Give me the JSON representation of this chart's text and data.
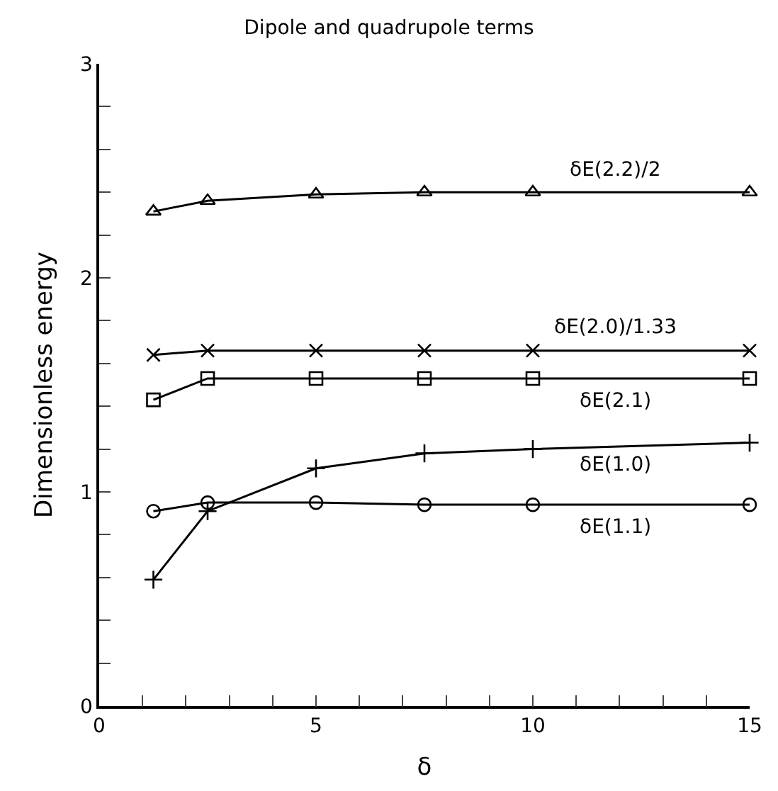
{
  "chart_data": {
    "type": "line",
    "title": "Dipole and quadrupole terms",
    "xlabel": "δ",
    "ylabel": "Dimensionless energy",
    "x": [
      1.25,
      2.5,
      5,
      7.5,
      10,
      15
    ],
    "series": [
      {
        "name": "δE(2.2)/2",
        "color": "#000000",
        "marker": "triangle",
        "values": [
          2.31,
          2.36,
          2.39,
          2.4,
          2.4,
          2.4
        ]
      },
      {
        "name": "δE(2.0)/1.33",
        "color": "#000000",
        "marker": "cross",
        "values": [
          1.64,
          1.66,
          1.66,
          1.66,
          1.66,
          1.66
        ]
      },
      {
        "name": "δE(2.1)",
        "color": "#000000",
        "marker": "square",
        "values": [
          1.43,
          1.53,
          1.53,
          1.53,
          1.53,
          1.53
        ]
      },
      {
        "name": "δE(1.0)",
        "color": "#000000",
        "marker": "plus",
        "values": [
          0.59,
          0.91,
          1.11,
          1.18,
          1.2,
          1.23
        ]
      },
      {
        "name": "δE(1.1)",
        "color": "#000000",
        "marker": "circle",
        "values": [
          0.91,
          0.95,
          0.95,
          0.94,
          0.94,
          0.94
        ]
      }
    ],
    "xlim": [
      0,
      15
    ],
    "ylim": [
      0,
      3
    ],
    "xticks": [
      0,
      {
        "value": 1,
        "label": null
      },
      {
        "value": 2,
        "label": null
      },
      {
        "value": 3,
        "label": null
      },
      {
        "value": 4,
        "label": null
      },
      5,
      {
        "value": 6,
        "label": null
      },
      {
        "value": 7,
        "label": null
      },
      {
        "value": 8,
        "label": null
      },
      {
        "value": 9,
        "label": null
      },
      10,
      {
        "value": 11,
        "label": null
      },
      {
        "value": 12,
        "label": null
      },
      {
        "value": 13,
        "label": null
      },
      {
        "value": 14,
        "label": null
      },
      15
    ],
    "yticks": [
      0,
      {
        "value": 0.2,
        "label": null
      },
      {
        "value": 0.4,
        "label": null
      },
      {
        "value": 0.6,
        "label": null
      },
      {
        "value": 0.8,
        "label": null
      },
      1,
      {
        "value": 1.2,
        "label": null
      },
      {
        "value": 1.4,
        "label": null
      },
      {
        "value": 1.6,
        "label": null
      },
      {
        "value": 1.8,
        "label": null
      },
      2,
      {
        "value": 2.2,
        "label": null
      },
      {
        "value": 2.4,
        "label": null
      },
      {
        "value": 2.6,
        "label": null
      },
      {
        "value": 2.8,
        "label": null
      },
      3
    ],
    "legend": false,
    "line_style": "solid"
  }
}
